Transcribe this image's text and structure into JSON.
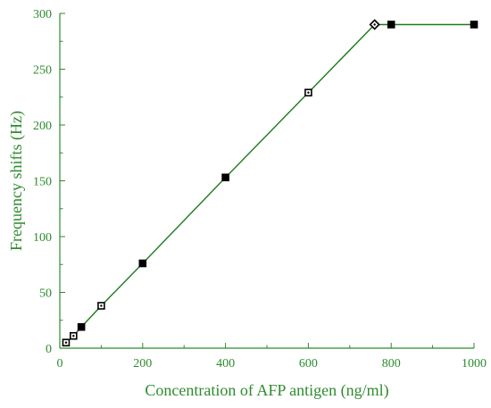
{
  "chart_data": {
    "type": "line",
    "title": "",
    "xlabel": "Concentration of AFP antigen (ng/ml)",
    "ylabel": "Frequency shifts (Hz)",
    "xlim": [
      0,
      1000
    ],
    "ylim": [
      0,
      300
    ],
    "xticks": [
      0,
      200,
      400,
      600,
      800,
      1000
    ],
    "yticks": [
      0,
      50,
      100,
      150,
      200,
      250,
      300
    ],
    "grid": false,
    "legend": "none",
    "series": [
      {
        "x": [
          15,
          33,
          52,
          100,
          200,
          400,
          600,
          760,
          800,
          1000
        ],
        "y": [
          5,
          11,
          19,
          38,
          76,
          153,
          229,
          290,
          290,
          290
        ],
        "markers": [
          "square-dot",
          "square-dot",
          "square",
          "square-dot",
          "square",
          "square",
          "square-dot",
          "diamond-dot",
          "square",
          "square"
        ]
      }
    ],
    "colors": {
      "axis": "#2e8b2e",
      "text": "#2e8b2e",
      "line": "#1f7a1f",
      "marker": "#000000"
    }
  }
}
